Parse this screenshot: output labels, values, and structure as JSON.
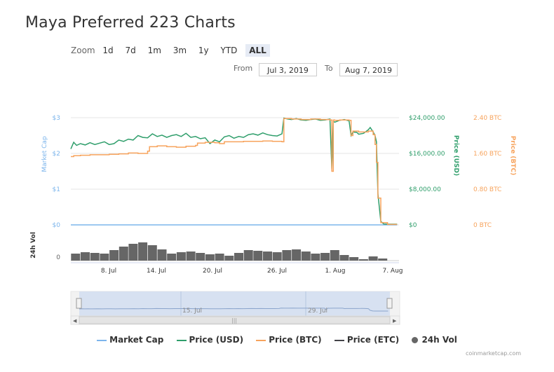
{
  "title": "Maya Preferred 223 Charts",
  "zoom": {
    "label": "Zoom",
    "buttons": [
      "1d",
      "7d",
      "1m",
      "3m",
      "1y",
      "YTD",
      "ALL"
    ],
    "active": "ALL"
  },
  "range": {
    "from_label": "From",
    "from_value": "Jul 3, 2019",
    "to_label": "To",
    "to_value": "Aug 7, 2019"
  },
  "legend": {
    "market_cap": "Market Cap",
    "price_usd": "Price (USD)",
    "price_btc": "Price (BTC)",
    "price_etc": "Price (ETC)",
    "vol": "24h Vol"
  },
  "credit": "coinmarketcap.com",
  "colors": {
    "market_cap": "#7cb5ec",
    "price_usd": "#2f9e6b",
    "price_btc": "#f7a35c",
    "price_etc": "#434348",
    "volume": "#666666",
    "navigator": "#cfdcf0"
  },
  "chart_data": {
    "type": "line",
    "title": "Maya Preferred 223 Charts",
    "x_start": "Jul 3, 2019",
    "x_end": "Aug 7, 2019",
    "x_ticks": [
      "8. Jul",
      "14. Jul",
      "20. Jul",
      "26. Jul",
      "1. Aug",
      "7. Aug"
    ],
    "axes": {
      "market_cap": {
        "label": "Market Cap",
        "ticks": [
          "$0",
          "$1",
          "$2",
          "$3"
        ]
      },
      "price_usd": {
        "label": "Price (USD)",
        "ticks": [
          "$0",
          "$8,000.00",
          "$16,000.00",
          "$24,000.00"
        ],
        "ylim": [
          0,
          24000
        ]
      },
      "price_btc": {
        "label": "Price (BTC)",
        "ticks": [
          "0 BTC",
          "0.80 BTC",
          "1.60 BTC",
          "2.40 BTC"
        ],
        "ylim": [
          0,
          2.4
        ]
      },
      "volume": {
        "label": "24h Vol",
        "ticks": [
          "0"
        ]
      }
    },
    "navigator_ticks": [
      "15. Jul",
      "29. Jul"
    ],
    "series": [
      {
        "name": "Price (USD)",
        "x": [
          3.0,
          3.3,
          3.6,
          4.0,
          4.5,
          5.0,
          5.5,
          6.0,
          6.5,
          7.0,
          7.5,
          8.0,
          8.5,
          9.0,
          9.5,
          10.0,
          10.5,
          11.0,
          11.5,
          12.0,
          12.5,
          13.0,
          13.5,
          14.0,
          14.5,
          15.0,
          15.5,
          16.0,
          16.5,
          17.0,
          17.5,
          18.0,
          18.5,
          19.0,
          19.5,
          20.0,
          20.5,
          21.0,
          21.5,
          22.0,
          22.5,
          23.0,
          23.5,
          24.0,
          24.5,
          25.0,
          25.2,
          25.6,
          26.0,
          26.5,
          27.0,
          27.5,
          28.0,
          28.5,
          29.0,
          29.5,
          30.0,
          30.2,
          30.35,
          30.5,
          31.0,
          31.5,
          32.0,
          32.2,
          32.4,
          32.8,
          33.0,
          33.5,
          34.0,
          34.2,
          34.5,
          34.7,
          34.85,
          35.0,
          35.3,
          35.6,
          36.0,
          37.0
        ],
        "values": [
          17000,
          18500,
          17800,
          18200,
          17900,
          18400,
          18000,
          18300,
          18600,
          18000,
          18200,
          19000,
          18700,
          19200,
          19000,
          20000,
          19600,
          19500,
          20400,
          19800,
          20100,
          19600,
          20000,
          20200,
          19800,
          20500,
          19600,
          19800,
          19300,
          19500,
          18200,
          19000,
          18600,
          19700,
          20000,
          19400,
          19800,
          19600,
          20200,
          20400,
          20100,
          20600,
          20200,
          20000,
          19900,
          20400,
          23900,
          23700,
          23600,
          23800,
          23500,
          23400,
          23600,
          23700,
          23400,
          23500,
          23700,
          12500,
          23200,
          23000,
          23400,
          23600,
          23300,
          20000,
          20800,
          20700,
          20300,
          20500,
          21300,
          21800,
          20800,
          20000,
          18600,
          7000,
          800,
          200,
          150,
          150
        ]
      },
      {
        "name": "Price (BTC)",
        "x": [
          3.0,
          3.3,
          4.0,
          5.0,
          6.0,
          7.0,
          8.0,
          9.0,
          10.0,
          10.5,
          11.0,
          11.2,
          12.0,
          13.0,
          14.0,
          15.0,
          16.0,
          16.2,
          17.0,
          18.0,
          18.5,
          19.0,
          20.0,
          21.0,
          22.0,
          23.0,
          24.0,
          25.0,
          25.2,
          26.0,
          27.0,
          28.0,
          29.0,
          30.0,
          30.2,
          30.35,
          30.5,
          31.0,
          32.0,
          32.2,
          32.4,
          33.0,
          34.0,
          34.2,
          34.5,
          34.7,
          34.85,
          35.0,
          35.3,
          36.0,
          37.0
        ],
        "values": [
          1.53,
          1.55,
          1.56,
          1.57,
          1.57,
          1.58,
          1.59,
          1.61,
          1.6,
          1.6,
          1.65,
          1.75,
          1.77,
          1.75,
          1.74,
          1.76,
          1.78,
          1.83,
          1.85,
          1.84,
          1.82,
          1.86,
          1.86,
          1.87,
          1.87,
          1.88,
          1.87,
          1.86,
          2.38,
          2.37,
          2.36,
          2.37,
          2.36,
          2.35,
          1.2,
          2.35,
          2.34,
          2.35,
          2.34,
          2.0,
          2.1,
          2.08,
          2.1,
          2.1,
          2.02,
          1.8,
          1.4,
          0.6,
          0.05,
          0.01,
          0.01
        ]
      },
      {
        "name": "Market Cap",
        "x": [
          3.0,
          37.0
        ],
        "values": [
          0,
          0
        ]
      },
      {
        "name": "24h Vol",
        "x": [
          3.5,
          4.5,
          5.5,
          6.5,
          7.5,
          8.5,
          9.5,
          10.5,
          11.5,
          12.5,
          13.5,
          14.5,
          15.5,
          16.5,
          17.5,
          18.5,
          19.5,
          20.5,
          21.5,
          22.5,
          23.5,
          24.5,
          25.5,
          26.5,
          27.5,
          28.5,
          29.5,
          30.5,
          31.5,
          32.5,
          33.5,
          34.5,
          35.5
        ],
        "values": [
          1.0,
          1.2,
          1.1,
          1.0,
          1.5,
          2.0,
          2.4,
          2.6,
          2.2,
          1.6,
          1.0,
          1.2,
          1.3,
          1.1,
          0.9,
          1.0,
          0.7,
          1.1,
          1.5,
          1.4,
          1.3,
          1.2,
          1.5,
          1.6,
          1.3,
          1.0,
          1.1,
          1.5,
          0.8,
          0.5,
          0.2,
          0.6,
          0.3
        ]
      }
    ]
  }
}
